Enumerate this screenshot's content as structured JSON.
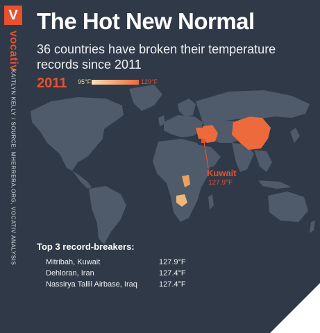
{
  "brand": {
    "logo_letter": "V",
    "name": "vocativ"
  },
  "credit": "KAITLYN KELLY / SOURCE: MHERRERA.ORG, VOCATIV ANALYSIS",
  "title": "The Hot New Normal",
  "subtitle": "36 countries have broken their temperature records since 2011",
  "legend": {
    "year": "2011",
    "min_label": "95°F",
    "max_label": "129°F",
    "min_color": "#f6e2b4",
    "max_color": "#ec6a3c"
  },
  "callout": {
    "country": "Kuwait",
    "temp": "127.9°F"
  },
  "colors": {
    "background": "#2f3947",
    "land": "#4f5a6a",
    "accent": "#e8512f"
  },
  "highlighted_regions": [
    "Iran",
    "Iraq",
    "Kuwait",
    "China",
    "Central Africa",
    "Southern Africa"
  ],
  "top3": {
    "heading": "Top 3 record-breakers:",
    "rows": [
      {
        "place": "Mitribah, Kuwait",
        "temp": "127.9°F"
      },
      {
        "place": "Dehloran, Iran",
        "temp": "127.4°F"
      },
      {
        "place": "Nassirya Tallil Airbase, Iraq",
        "temp": "127.4°F"
      }
    ]
  }
}
